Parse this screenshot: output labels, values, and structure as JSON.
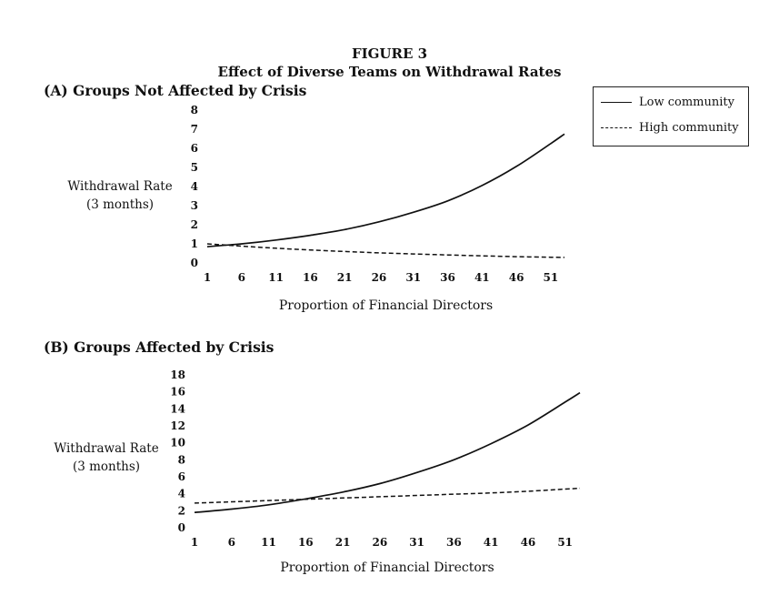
{
  "figure": {
    "number": "FIGURE 3",
    "title": "Effect of Diverse Teams on Withdrawal Rates"
  },
  "legend": {
    "placement": "top-right",
    "entries": [
      {
        "label": "Low community",
        "style": "solid"
      },
      {
        "label": "High community",
        "style": "dashed"
      }
    ]
  },
  "chart_data": [
    {
      "type": "line",
      "title": "(A) Groups Not Affected by Crisis",
      "xlabel": "Proportion of Financial Directors",
      "ylabel": [
        "Withdrawal Rate",
        "(3 months)"
      ],
      "x_ticks": [
        "1",
        "6",
        "11",
        "16",
        "21",
        "26",
        "31",
        "36",
        "41",
        "46",
        "51"
      ],
      "y_ticks": [
        "0",
        "1",
        "2",
        "3",
        "4",
        "5",
        "6",
        "7",
        "8"
      ],
      "xlim": [
        1,
        53
      ],
      "ylim": [
        0,
        8
      ],
      "grid": false,
      "x": [
        1,
        6,
        11,
        16,
        21,
        26,
        31,
        36,
        41,
        46,
        51,
        53
      ],
      "series": [
        {
          "name": "Low community",
          "style": "solid",
          "values": [
            0.85,
            1.0,
            1.2,
            1.45,
            1.75,
            2.15,
            2.65,
            3.25,
            4.05,
            5.05,
            6.25,
            6.75
          ]
        },
        {
          "name": "High community",
          "style": "dashed",
          "values": [
            1.0,
            0.88,
            0.77,
            0.68,
            0.6,
            0.53,
            0.47,
            0.42,
            0.37,
            0.33,
            0.3,
            0.29
          ]
        }
      ]
    },
    {
      "type": "line",
      "title": "(B) Groups Affected by Crisis",
      "xlabel": "Proportion of Financial Directors",
      "ylabel": [
        "Withdrawal Rate",
        "(3 months)"
      ],
      "x_ticks": [
        "1",
        "6",
        "11",
        "16",
        "21",
        "26",
        "31",
        "36",
        "41",
        "46",
        "51"
      ],
      "y_ticks": [
        "0",
        "2",
        "4",
        "6",
        "8",
        "10",
        "12",
        "14",
        "16",
        "18"
      ],
      "xlim": [
        1,
        53
      ],
      "ylim": [
        0,
        18
      ],
      "grid": false,
      "x": [
        1,
        6,
        11,
        16,
        21,
        26,
        31,
        36,
        41,
        46,
        51,
        53
      ],
      "series": [
        {
          "name": "Low community",
          "style": "solid",
          "values": [
            1.8,
            2.2,
            2.7,
            3.4,
            4.2,
            5.2,
            6.5,
            8.0,
            9.9,
            12.1,
            14.8,
            15.9
          ]
        },
        {
          "name": "High community",
          "style": "dashed",
          "values": [
            2.9,
            3.05,
            3.2,
            3.35,
            3.5,
            3.65,
            3.8,
            3.95,
            4.1,
            4.3,
            4.55,
            4.65
          ]
        }
      ]
    }
  ]
}
